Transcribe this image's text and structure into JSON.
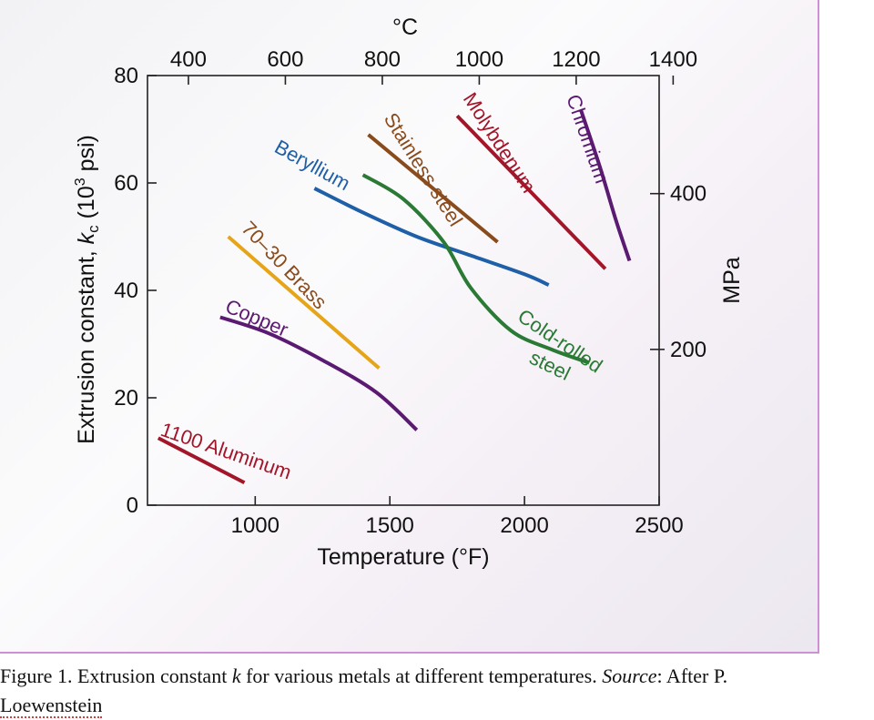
{
  "chart_data": {
    "type": "line",
    "xlabel": "Temperature (°F)",
    "ylabel": "Extrusion constant, k_c (10³ psi)",
    "ylabel_parts": {
      "main": "Extrusion constant, ",
      "k": "k",
      "sub": "c",
      "open": " (10",
      "sup": "3",
      "close": " psi)"
    },
    "top_axis_label": "°C",
    "right_axis_label": "MPa",
    "xlim": [
      600,
      2500
    ],
    "ylim": [
      0,
      80
    ],
    "x_ticks": [
      1000,
      1500,
      2000,
      2500
    ],
    "y_ticks": [
      0,
      20,
      40,
      60,
      80
    ],
    "top_ticks": [
      400,
      600,
      800,
      1000,
      1200,
      1400
    ],
    "right_ticks": [
      200,
      400
    ],
    "series": [
      {
        "name": "1100 Aluminum",
        "color": "#a3162a",
        "x": [
          640,
          960
        ],
        "y": [
          12.5,
          4.2
        ]
      },
      {
        "name": "Copper",
        "color": "#5b1a72",
        "x": [
          870,
          1050,
          1250,
          1450,
          1600
        ],
        "y": [
          35,
          32,
          27,
          21,
          14
        ]
      },
      {
        "name": "70–30 Brass",
        "color": "#e6a519",
        "x": [
          900,
          1460
        ],
        "y": [
          50,
          25.5
        ]
      },
      {
        "name": "Beryllium",
        "color": "#1f5fa8",
        "x": [
          1220,
          1400,
          1600,
          1800,
          2000,
          2090
        ],
        "y": [
          59,
          54.5,
          50,
          46.5,
          43,
          41
        ]
      },
      {
        "name": "Cold-rolled steel",
        "color": "#2a7a35",
        "x": [
          1400,
          1550,
          1700,
          1800,
          1950,
          2100,
          2240
        ],
        "y": [
          61.5,
          57,
          49,
          40.5,
          32.5,
          29,
          26.5
        ]
      },
      {
        "name": "Stainless steel",
        "color": "#8a4b1c",
        "x": [
          1420,
          1900
        ],
        "y": [
          69,
          49
        ]
      },
      {
        "name": "Molybdenum",
        "color": "#a3162a",
        "x": [
          1750,
          2300
        ],
        "y": [
          72.5,
          44
        ]
      },
      {
        "name": "Chromium",
        "color": "#5b1a72",
        "x": [
          2210,
          2280,
          2340,
          2390
        ],
        "y": [
          73.5,
          63,
          53,
          45.5
        ]
      }
    ],
    "labels": [
      "1100 Aluminum",
      "Copper",
      "70–30 Brass",
      "Beryllium",
      "Cold-rolled",
      "steel",
      "Stainless steel",
      "Molybdenum",
      "Chromium"
    ]
  },
  "caption": {
    "prefix": "Figure 1. Extrusion constant ",
    "k": "k",
    "middle": " for various metals at different temperatures.  ",
    "source_word": "Source",
    "suffix": ":  After P.",
    "line2": "Loewenstein"
  }
}
